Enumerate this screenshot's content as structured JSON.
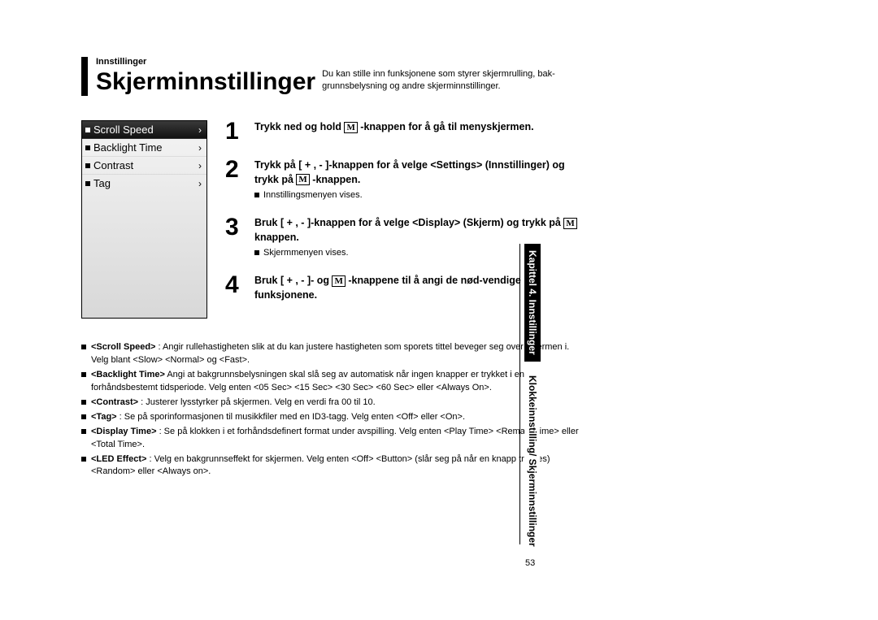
{
  "header": {
    "breadcrumb": "Innstillinger",
    "title": "Skjerminnstillinger",
    "subtitle": "Du kan stille inn funksjonene som styrer skjermrulling, bak-grunnsbelysning og andre skjerminnstillinger."
  },
  "sideTab": {
    "chapter": "Kapittel 4. Innstillinger",
    "section": "Klokkeinnstilling/\nSkjerminnstillinger"
  },
  "deviceMenu": {
    "items": [
      {
        "label": "Scroll Speed",
        "selected": true
      },
      {
        "label": "Backlight Time",
        "selected": false
      },
      {
        "label": "Contrast",
        "selected": false
      },
      {
        "label": "Tag",
        "selected": false
      }
    ]
  },
  "steps": [
    {
      "num": "1",
      "main_before": "Trykk ned og hold ",
      "main_after": " -knappen for å gå til menyskjermen.",
      "has_m": true,
      "sub": null
    },
    {
      "num": "2",
      "main_before": "Trykk på [ + , - ]-knappen for å velge <Settings> (Innstillinger) og trykk på ",
      "main_after": " -knappen.",
      "has_m": true,
      "sub": "Innstillingsmenyen vises."
    },
    {
      "num": "3",
      "main_before": "Bruk [ + , - ]-knappen for å velge <Display> (Skjerm) og trykk på ",
      "main_after": " knappen.",
      "has_m": true,
      "sub": "Skjermmenyen vises."
    },
    {
      "num": "4",
      "main_before": "Bruk [ + , - ]- og ",
      "main_after": " -knappene til å angi de nød-vendige funksjonene.",
      "has_m": true,
      "sub": null
    }
  ],
  "definitions": [
    {
      "term": "<Scroll Speed>",
      "text": " : Angir rullehastigheten slik at du kan justere hastigheten som sporets tittel beveger seg over skjermen i. Velg blant <Slow> <Normal> og <Fast>."
    },
    {
      "term": "<Backlight Time>",
      "text": " Angi at bakgrunnsbelysningen skal slå seg av automatisk når ingen knapper er trykket i en forhåndsbestemt tidsperiode. Velg enten <05 Sec> <15 Sec> <30 Sec> <60 Sec> eller <Always On>."
    },
    {
      "term": "<Contrast>",
      "text": " : Justerer lysstyrker på skjermen. Velg en verdi fra 00 til 10."
    },
    {
      "term": "<Tag>",
      "text": " : Se på sporinformasjonen til musikkfiler med en ID3-tagg. Velg enten <Off> eller <On>."
    },
    {
      "term": "<Display Time>",
      "text": " : Se på klokken i et forhåndsdefinert format under avspilling. Velg enten <Play Time> <Remain Time> eller <Total Time>."
    },
    {
      "term": "<LED Effect>",
      "text": " : Velg en bakgrunnseffekt for skjermen. Velg enten <Off> <Button> (slår seg på når en knapp trykkes) <Random> eller <Always on>."
    }
  ],
  "pageNumber": "53",
  "mButton": "M"
}
